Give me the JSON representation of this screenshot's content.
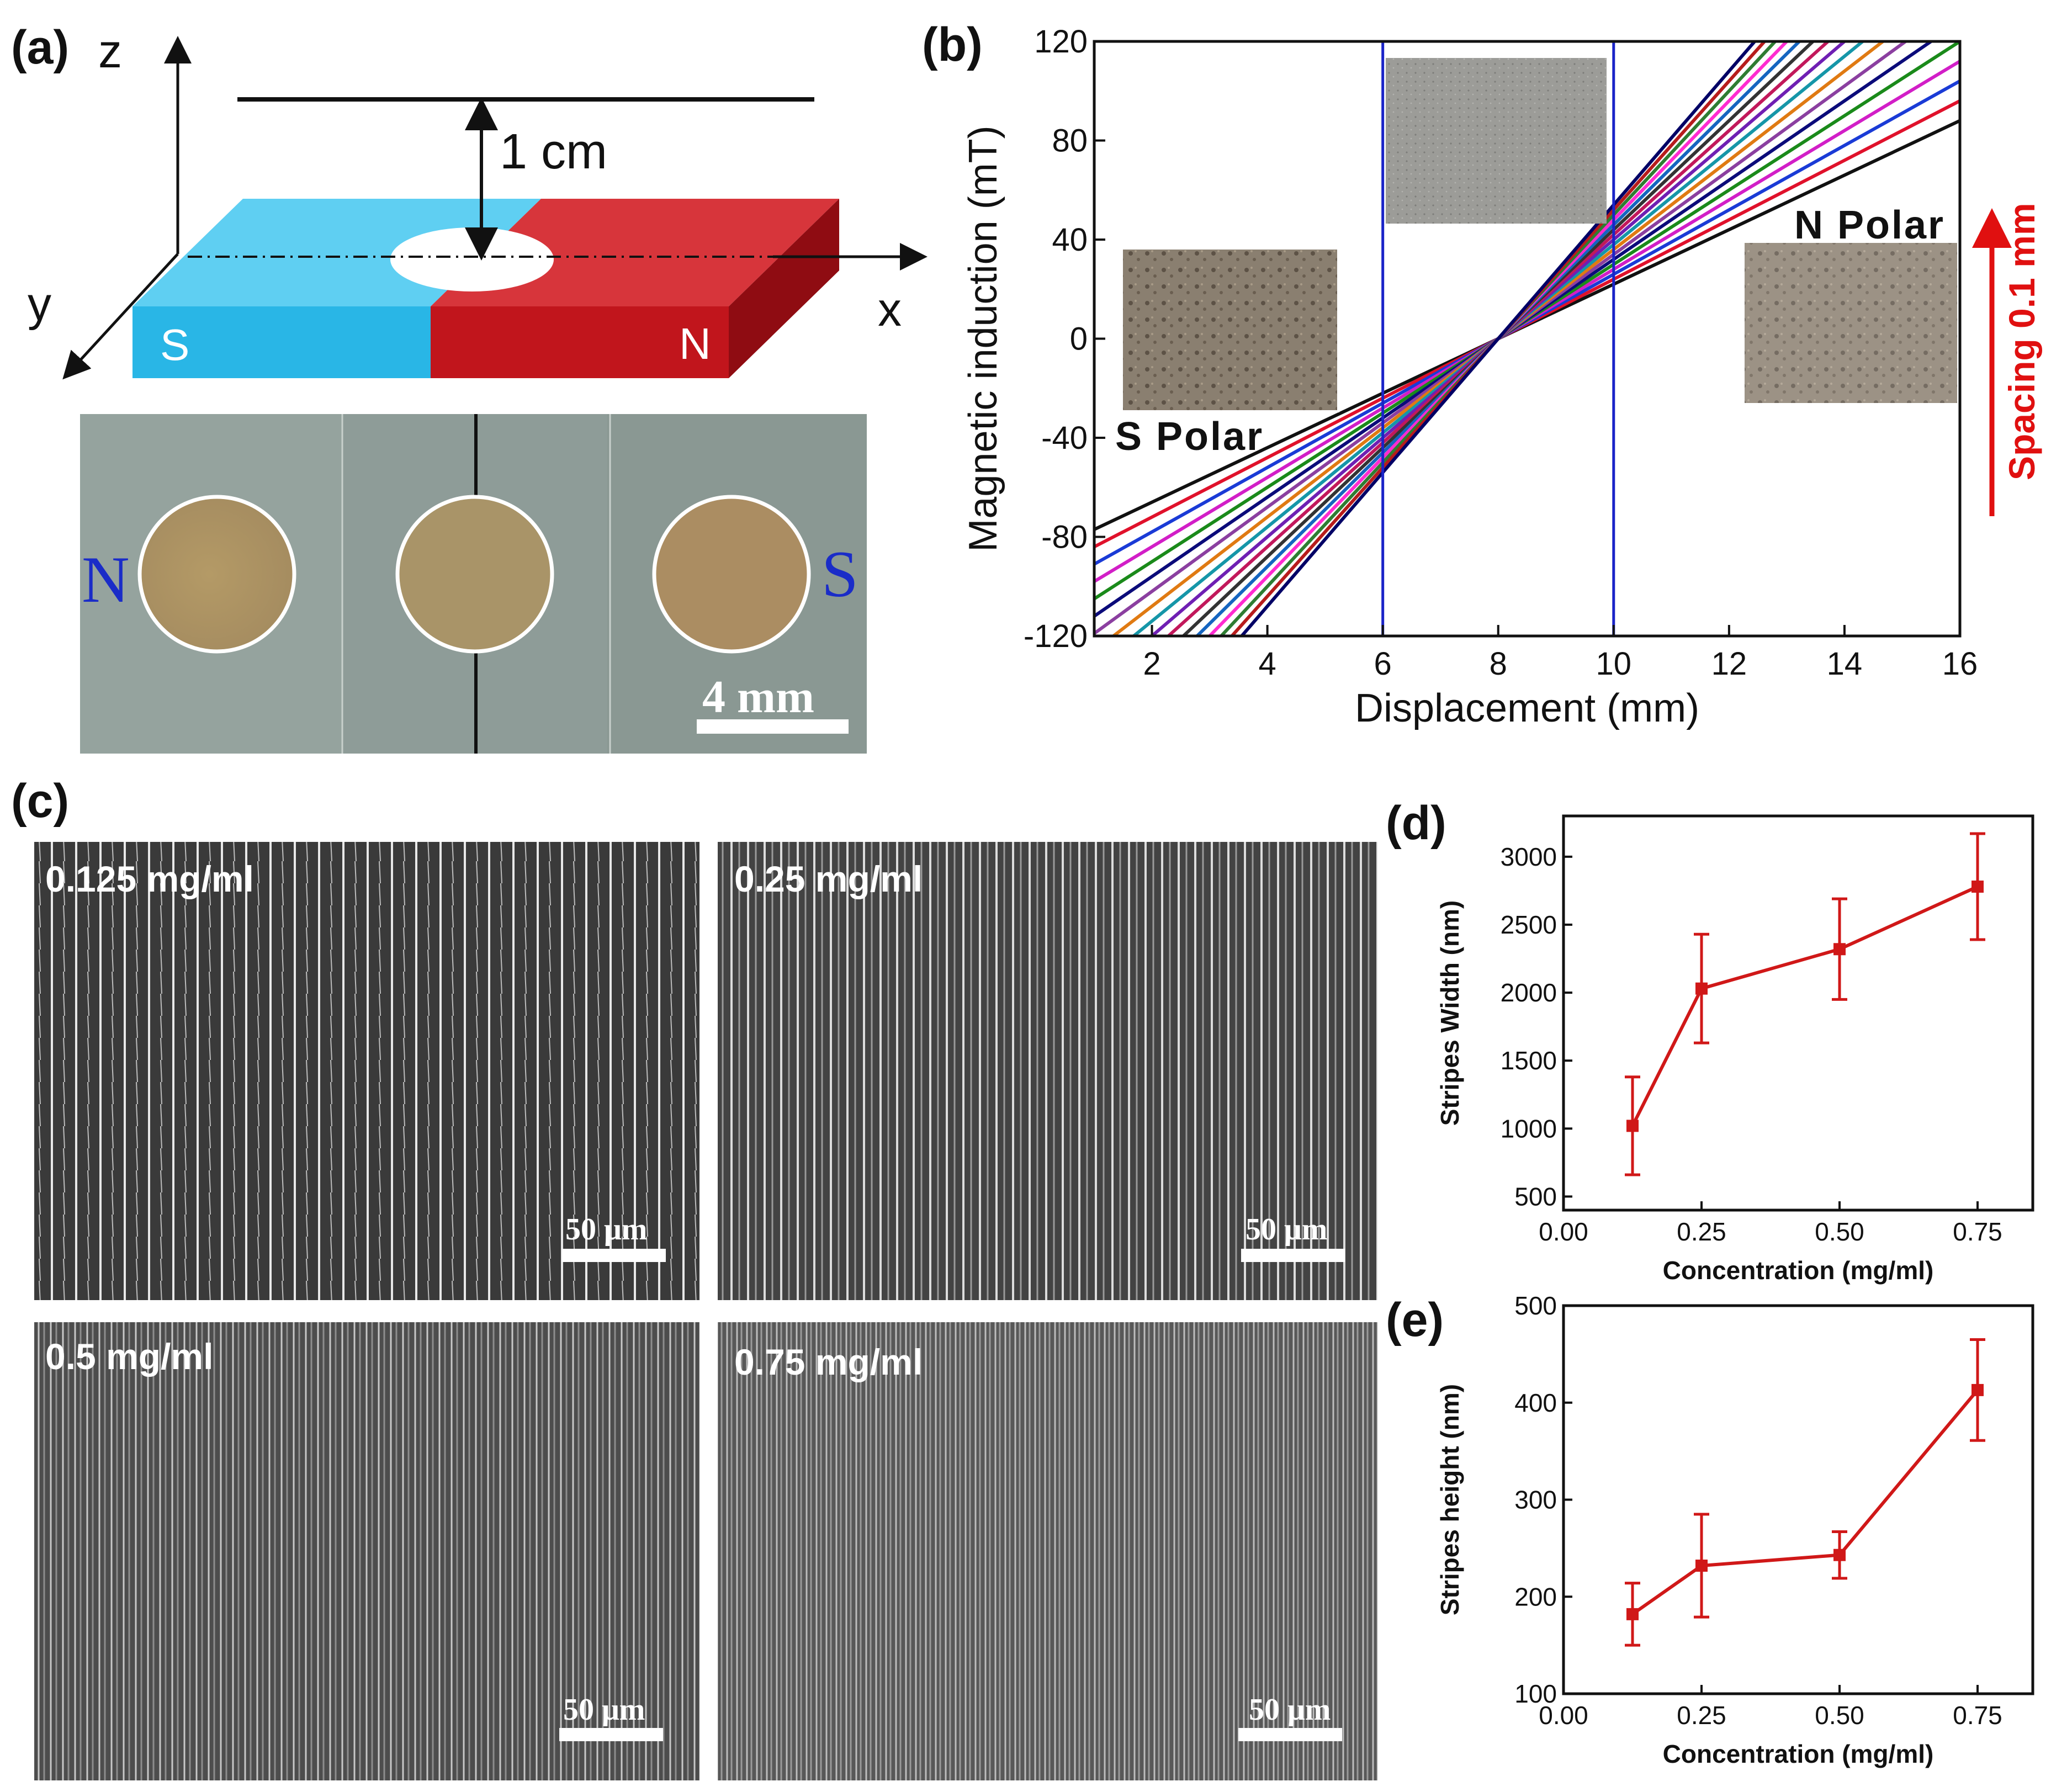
{
  "panels": {
    "a": {
      "label": "(a)",
      "axes": {
        "z": "z",
        "y": "y",
        "x": "x"
      },
      "distance": "1 cm",
      "magnet": {
        "south": "S",
        "north": "N"
      },
      "photo": {
        "left_pole": "N",
        "right_pole": "S",
        "scale_bar": "4 mm"
      },
      "colors": {
        "south": "#29b6e6",
        "north": "#c1151c"
      }
    },
    "b": {
      "label": "(b)"
    },
    "c": {
      "label": "(c)",
      "images": [
        {
          "concentration": "0.125 mg/ml",
          "scale_bar": "50 μm"
        },
        {
          "concentration": "0.25 mg/ml",
          "scale_bar": "50 μm"
        },
        {
          "concentration": "0.5 mg/ml",
          "scale_bar": "50 μm"
        },
        {
          "concentration": "0.75 mg/ml",
          "scale_bar": "50 μm"
        }
      ]
    },
    "d": {
      "label": "(d)"
    },
    "e": {
      "label": "(e)"
    }
  },
  "chart_data": [
    {
      "id": "b",
      "type": "line",
      "title": "",
      "xlabel": "Displacement (mm)",
      "ylabel": "Magnetic induction (mT)",
      "xlim": [
        1,
        16
      ],
      "ylim": [
        -120,
        120
      ],
      "xticks": [
        2,
        4,
        6,
        8,
        10,
        12,
        14,
        16
      ],
      "yticks": [
        -120,
        -80,
        -40,
        0,
        40,
        80,
        120
      ],
      "crossover": {
        "x": 8,
        "y": 0
      },
      "series_slopes": [
        11.0,
        12.0,
        13.0,
        14.0,
        15.0,
        16.0,
        17.0,
        18.0,
        19.0,
        20.0,
        21.0,
        22.0,
        23.0,
        24.0,
        25.0,
        26.0,
        27.0
      ],
      "series_colors": [
        "#111111",
        "#e0112b",
        "#1a3bd6",
        "#d21ec7",
        "#1a8a1a",
        "#0b0b7a",
        "#8b3fa0",
        "#e07a12",
        "#1596a8",
        "#6f1fb3",
        "#c2185b",
        "#333333",
        "#1565c0",
        "#ff2bd0",
        "#2e7d32",
        "#b71c1c",
        "#000066"
      ],
      "vlines": [
        6,
        10
      ],
      "annotations": {
        "s_polar": "S Polar",
        "n_polar": "N Polar",
        "spacing": "Spacing 0.1 mm"
      }
    },
    {
      "id": "d",
      "type": "line",
      "xlabel": "Concentration (mg/ml)",
      "ylabel": "Stripes Width (nm)",
      "xlim": [
        0,
        0.85
      ],
      "ylim": [
        400,
        3300
      ],
      "xticks": [
        "0.00",
        "0.25",
        "0.50",
        "0.75"
      ],
      "yticks": [
        500,
        1000,
        1500,
        2000,
        2500,
        3000
      ],
      "x": [
        0.125,
        0.25,
        0.5,
        0.75
      ],
      "y": [
        1020,
        2030,
        2320,
        2780
      ],
      "error": [
        360,
        400,
        370,
        390
      ]
    },
    {
      "id": "e",
      "type": "line",
      "xlabel": "Concentration (mg/ml)",
      "ylabel": "Stripes height (nm)",
      "xlim": [
        0,
        0.85
      ],
      "ylim": [
        100,
        500
      ],
      "xticks": [
        "0.00",
        "0.25",
        "0.50",
        "0.75"
      ],
      "yticks": [
        100,
        200,
        300,
        400,
        500
      ],
      "x": [
        0.125,
        0.25,
        0.5,
        0.75
      ],
      "y": [
        182,
        232,
        243,
        413
      ],
      "error": [
        32,
        53,
        24,
        52
      ]
    }
  ]
}
